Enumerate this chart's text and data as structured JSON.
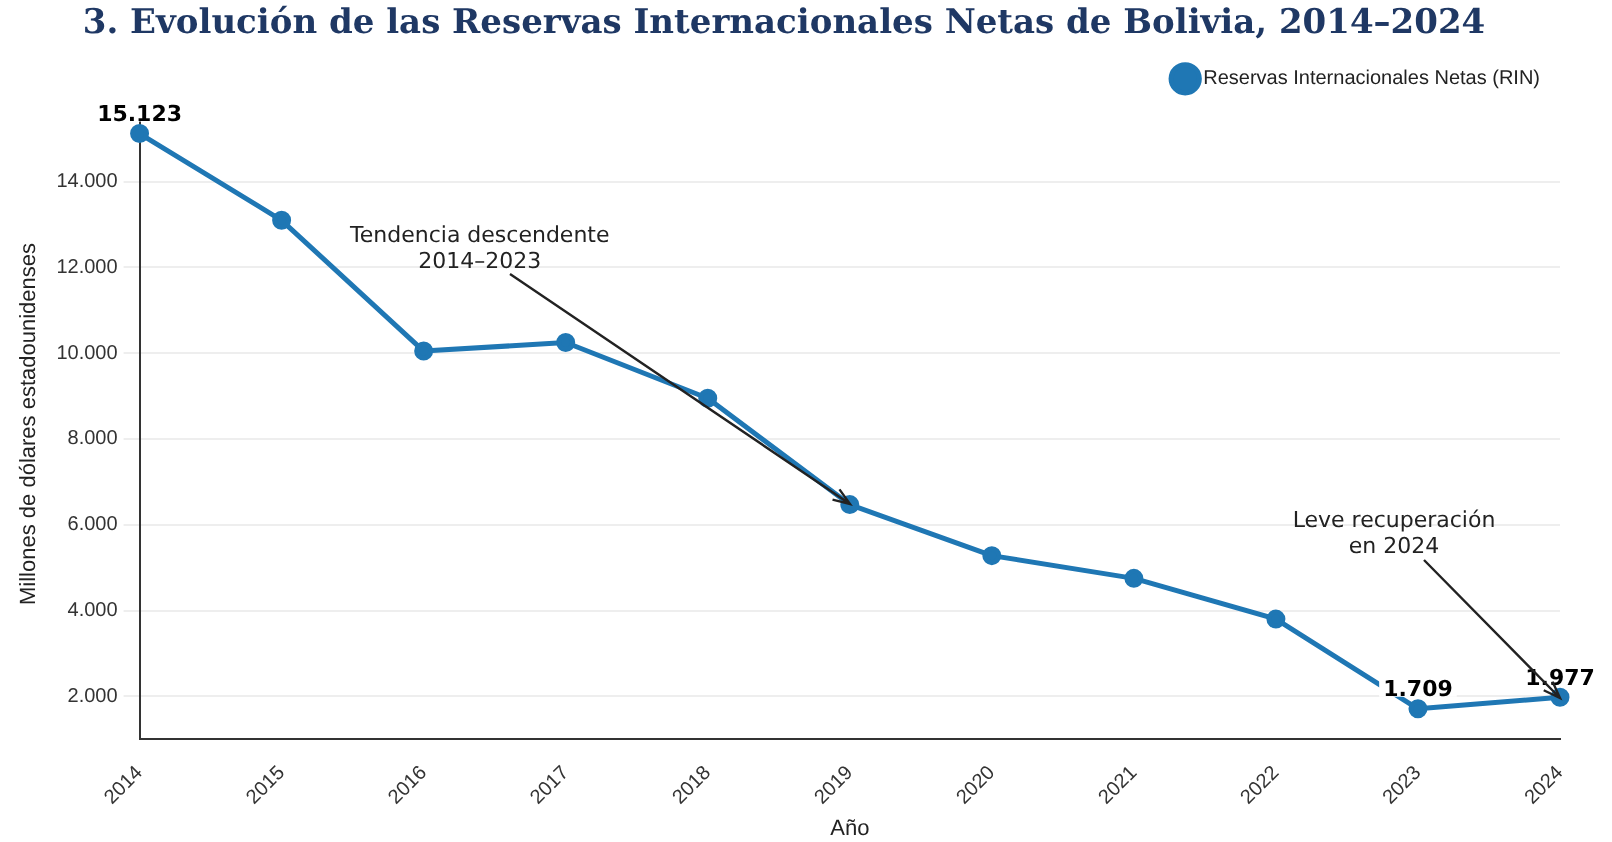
{
  "chart_data": {
    "type": "line",
    "title": "3. Evolución de las Reservas Internacionales Netas de Bolivia, 2014–2024",
    "xlabel": "Año",
    "ylabel": "Millones de dólares estadounidenses",
    "categories": [
      "2014",
      "2015",
      "2016",
      "2017",
      "2018",
      "2019",
      "2020",
      "2021",
      "2022",
      "2023",
      "2024"
    ],
    "series": [
      {
        "name": "Reservas Internacionales Netas (RIN)",
        "color": "#1f77b4",
        "values": [
          15123,
          13100,
          10050,
          10250,
          8950,
          6470,
          5280,
          4750,
          3800,
          1709,
          1977
        ],
        "value_labels": [
          "15.123",
          null,
          null,
          null,
          null,
          null,
          null,
          null,
          null,
          "1.709",
          "1.977"
        ]
      }
    ],
    "ylim": [
      1000,
      15700
    ],
    "yticks": [
      {
        "value": 2000,
        "label": "2.000"
      },
      {
        "value": 4000,
        "label": "4.000"
      },
      {
        "value": 6000,
        "label": "6.000"
      },
      {
        "value": 8000,
        "label": "8.000"
      },
      {
        "value": 10000,
        "label": "10.000"
      },
      {
        "value": 12000,
        "label": "12.000"
      },
      {
        "value": 14000,
        "label": "14.000"
      }
    ],
    "annotations": [
      {
        "text": "Tendencia descendente\n2014–2023",
        "x": "2019",
        "y": 6470
      },
      {
        "text": "Leve recuperación\nen 2024",
        "x": "2024",
        "y": 1977
      }
    ],
    "grid": "y",
    "legend": "top right",
    "marker": "circle",
    "line_style": "solid"
  }
}
